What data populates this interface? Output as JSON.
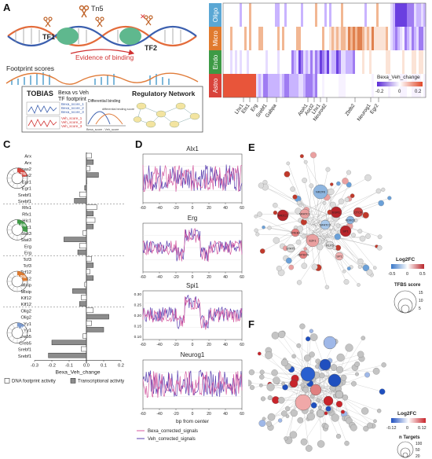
{
  "panels": {
    "A": "A",
    "B": "B",
    "C": "C",
    "D": "D",
    "E": "E",
    "F": "F"
  },
  "panelA": {
    "tn5": "Tn5",
    "tf1": "TF1",
    "tf2": "TF2",
    "evidence": "Evidence of binding",
    "footprint_scores": "Footprint scores",
    "tobias": "TOBIAS",
    "bexa_vs_veh": "Bexa vs Veh",
    "tf_footprint": "TF footprint",
    "regulatory_network": "Regulatory Network",
    "bexa_scores": [
      "Bexa_score_1",
      "Bexa_score_2",
      "Bexa_score_3"
    ],
    "veh_scores": [
      "Veh_score_1",
      "Veh_score_2",
      "Veh_score_3"
    ],
    "differential_binding": "Differential binding",
    "diff_sub": "differential binding score",
    "axis_label": "Bexa_score - Veh_score"
  },
  "panelB": {
    "rows": [
      "Oligo",
      "Micro",
      "Endo",
      "Astro"
    ],
    "row_colors": [
      "#5aa7d4",
      "#e07a2e",
      "#3d9a45",
      "#d8433b"
    ],
    "legend_title": "Bexa_Veh_change",
    "legend_ticks": [
      "-0.2",
      "0",
      "0.2"
    ],
    "gene_labels": [
      "Lhx1",
      "Ets1",
      "Erg",
      "Srebf1",
      "Gabpa",
      "Atoh1",
      "Ascl2",
      "Lhx1",
      "Neurod2",
      "Zbtb2",
      "Neurog1",
      "Egr2"
    ]
  },
  "chart_data": [
    {
      "type": "bar",
      "title": "",
      "xlabel": "Bexa_Veh_change",
      "xlim": [
        -0.3,
        0.2
      ],
      "xticks": [
        "-0.3",
        "-0.2",
        "-0.1",
        "0.0",
        "0.1",
        "0.2"
      ],
      "groups": [
        {
          "pct": "21.2%",
          "color": "#d8433b",
          "rows": [
            {
              "label": "Arx",
              "kind": "footprint",
              "value": 0.03
            },
            {
              "label": "Arx",
              "kind": "transcription",
              "value": 0.04
            },
            {
              "label": "Npas2",
              "kind": "footprint",
              "value": 0.02
            },
            {
              "label": "Npas2",
              "kind": "transcription",
              "value": 0.07
            },
            {
              "label": "Egr1",
              "kind": "footprint",
              "value": 0.0
            },
            {
              "label": "Egr1",
              "kind": "transcription",
              "value": -0.01
            },
            {
              "label": "Srebf1",
              "kind": "footprint",
              "value": -0.04
            },
            {
              "label": "Srebf1",
              "kind": "transcription",
              "value": -0.07
            }
          ]
        },
        {
          "pct": "28.6%",
          "color": "#3d9a45",
          "rows": [
            {
              "label": "Rfx1",
              "kind": "footprint",
              "value": 0.06
            },
            {
              "label": "Rfx1",
              "kind": "transcription",
              "value": 0.04
            },
            {
              "label": "Hic1",
              "kind": "footprint",
              "value": 0.05
            },
            {
              "label": "Hic1",
              "kind": "transcription",
              "value": 0.04
            },
            {
              "label": "Stat3",
              "kind": "footprint",
              "value": -0.02
            },
            {
              "label": "Stat3",
              "kind": "transcription",
              "value": -0.13
            },
            {
              "label": "Erg",
              "kind": "footprint",
              "value": -0.04
            },
            {
              "label": "Erg",
              "kind": "transcription",
              "value": -0.05
            }
          ]
        },
        {
          "pct": "23.9%",
          "color": "#e07a2e",
          "rows": [
            {
              "label": "Tcf3",
              "kind": "footprint",
              "value": 0.03
            },
            {
              "label": "Tcf3",
              "kind": "transcription",
              "value": 0.04
            },
            {
              "label": "Tcf12",
              "kind": "footprint",
              "value": 0.02
            },
            {
              "label": "Tcf12",
              "kind": "transcription",
              "value": 0.04
            },
            {
              "label": "Mlxip",
              "kind": "footprint",
              "value": -0.01
            },
            {
              "label": "Mlxip",
              "kind": "transcription",
              "value": -0.08
            },
            {
              "label": "Klf12",
              "kind": "footprint",
              "value": -0.03
            },
            {
              "label": "Klf12",
              "kind": "transcription",
              "value": -0.04
            }
          ]
        },
        {
          "pct": "12.4%",
          "color": "#7b9bd1",
          "rows": [
            {
              "label": "Olig2",
              "kind": "footprint",
              "value": 0.04
            },
            {
              "label": "Olig2",
              "kind": "transcription",
              "value": 0.13
            },
            {
              "label": "Yy1",
              "kind": "footprint",
              "value": 0.03
            },
            {
              "label": "Yy1",
              "kind": "transcription",
              "value": 0.1
            },
            {
              "label": "Creb5",
              "kind": "footprint",
              "value": -0.02
            },
            {
              "label": "Creb5",
              "kind": "transcription",
              "value": -0.2
            },
            {
              "label": "Srebf1",
              "kind": "footprint",
              "value": -0.03
            },
            {
              "label": "Srebf1",
              "kind": "transcription",
              "value": -0.22
            }
          ]
        }
      ],
      "legend": [
        "DNA footprint activity",
        "Transcriptional activity"
      ]
    },
    {
      "type": "line",
      "xlabel": "bp from center",
      "xlim": [
        -60,
        60
      ],
      "xticks": [
        "-60",
        "-40",
        "-20",
        "0",
        "20",
        "40",
        "60"
      ],
      "legend": [
        "Bexa_corrected_signals",
        "Veh_corrected_signals"
      ],
      "legend_colors": [
        "#d45aa0",
        "#5a3fb0"
      ],
      "subplots": [
        {
          "title": "Alx1",
          "yticks": []
        },
        {
          "title": "Erg",
          "yticks": []
        },
        {
          "title": "Spi1",
          "yticks": [
            "0.30",
            "0.25",
            "0.20",
            "0.15",
            "0.10"
          ]
        },
        {
          "title": "Neurog1",
          "yticks": []
        }
      ]
    }
  ],
  "panelE": {
    "nodes_labeled": [
      "NR2F6",
      "NFATC1",
      "EGR1",
      "NFATC3",
      "CREB1",
      "SP1",
      "E2F1",
      "NR2C1",
      "CTCF",
      "KLF5",
      "ZBTB7A",
      "SP1",
      "STAT5",
      "FOXO1",
      "ZNF148",
      "MAZ",
      "NFKB1",
      "SMAD3",
      "ARNT"
    ],
    "legend_color_title": "Log2FC",
    "legend_color_ticks": [
      "-0.5",
      "0",
      "0.5"
    ],
    "legend_size_title": "TFBS score",
    "legend_size_ticks": [
      "15",
      "10",
      "5"
    ]
  },
  "panelF": {
    "legend_color_title": "Log2FC",
    "legend_color_ticks": [
      "-0.12",
      "0",
      "0.12"
    ],
    "legend_size_title": "n Targets",
    "legend_size_ticks": [
      "100",
      "50",
      "20"
    ]
  }
}
